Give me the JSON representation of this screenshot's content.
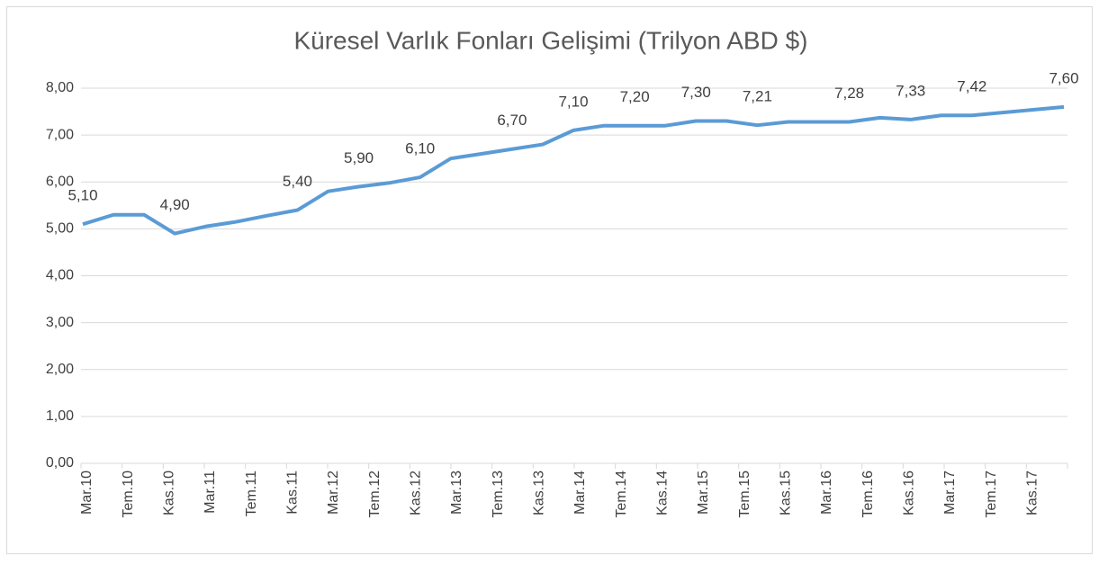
{
  "chart_data": {
    "type": "line",
    "title": "Küresel Varlık Fonları Gelişimi  (Trilyon ABD $)",
    "xticks": [
      "Mar.10",
      "Tem.10",
      "Kas.10",
      "Mar.11",
      "Tem.11",
      "Kas.11",
      "Mar.12",
      "Tem.12",
      "Kas.12",
      "Mar.13",
      "Tem.13",
      "Kas.13",
      "Mar.14",
      "Tem.14",
      "Kas.14",
      "Mar.15",
      "Tem.15",
      "Kas.15",
      "Mar.16",
      "Tem.16",
      "Kas.16",
      "Mar.17",
      "Tem.17",
      "Kas.17"
    ],
    "series": [
      {
        "name": "Küresel Varlık Fonları",
        "color": "#5b9bd5",
        "values": [
          5.1,
          5.3,
          5.3,
          4.9,
          5.05,
          5.15,
          5.28,
          5.4,
          5.8,
          5.9,
          5.98,
          6.1,
          6.5,
          6.6,
          6.7,
          6.8,
          7.1,
          7.2,
          7.2,
          7.2,
          7.3,
          7.3,
          7.21,
          7.28,
          7.28,
          7.28,
          7.37,
          7.33,
          7.42,
          7.42,
          7.48,
          7.54,
          7.6
        ],
        "value_labels": [
          "5,10",
          null,
          null,
          "4,90",
          null,
          null,
          null,
          "5,40",
          null,
          "5,90",
          null,
          "6,10",
          null,
          null,
          "6,70",
          null,
          "7,10",
          null,
          "7,20",
          null,
          "7,30",
          null,
          "7,21",
          null,
          null,
          "7,28",
          null,
          "7,33",
          null,
          "7,42",
          null,
          null,
          "7,60"
        ]
      }
    ],
    "ylim": [
      0,
      8
    ],
    "yticks": [
      {
        "value": 0,
        "label": "0,00"
      },
      {
        "value": 1,
        "label": "1,00"
      },
      {
        "value": 2,
        "label": "2,00"
      },
      {
        "value": 3,
        "label": "3,00"
      },
      {
        "value": 4,
        "label": "4,00"
      },
      {
        "value": 5,
        "label": "5,00"
      },
      {
        "value": 6,
        "label": "6,00"
      },
      {
        "value": 7,
        "label": "7,00"
      },
      {
        "value": 8,
        "label": "8,00"
      }
    ],
    "grid": true
  }
}
